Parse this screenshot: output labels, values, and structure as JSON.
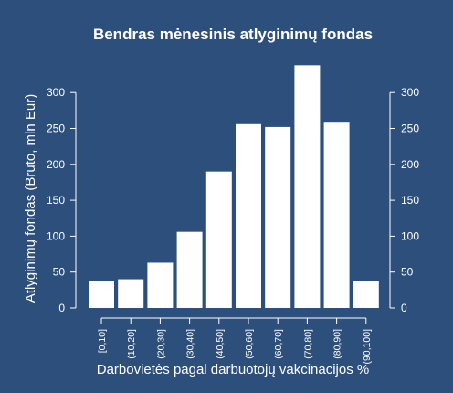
{
  "chart_data": {
    "type": "bar",
    "title": "Bendras mėnesinis atlyginimų fondas",
    "xlabel": "Darbovietės pagal darbuotojų vakcinacijos %",
    "ylabel": "Atlyginimų fondas (Bruto, mln Eur)",
    "categories": [
      "[0,10]",
      "(10,20]",
      "(20,30]",
      "(30,40]",
      "(40,50]",
      "(50,60]",
      "(60,70]",
      "(70,80]",
      "(80,90]",
      "(90,100]"
    ],
    "values": [
      37,
      40,
      63,
      106,
      190,
      256,
      252,
      338,
      258,
      37
    ],
    "ylim": [
      0,
      340
    ],
    "yticks": [
      0,
      50,
      100,
      150,
      200,
      250,
      300
    ],
    "grid": false,
    "legend": "none",
    "colors": {
      "background": "#2d4f7c",
      "bar": "#ffffff",
      "axis": "#ffffff",
      "text": "#ffffff"
    }
  }
}
